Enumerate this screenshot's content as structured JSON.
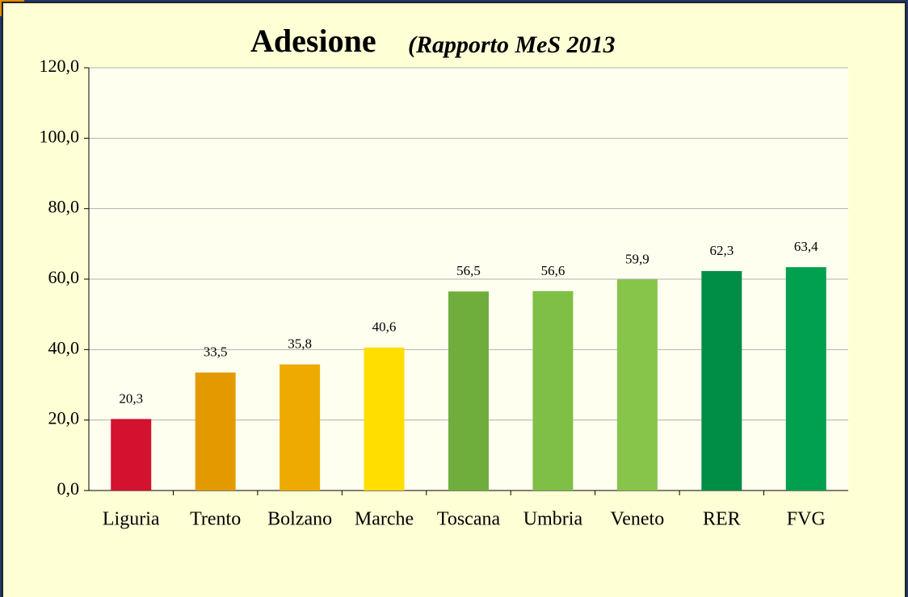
{
  "chart_data": {
    "type": "bar",
    "title": "Adesione",
    "subtitle": "(Rapporto MeS 2013",
    "categories": [
      "Liguria",
      "Trento",
      "Bolzano",
      "Marche",
      "Toscana",
      "Umbria",
      "Veneto",
      "RER",
      "FVG"
    ],
    "values": [
      20.3,
      33.5,
      35.8,
      40.6,
      56.5,
      56.6,
      59.9,
      62.3,
      63.4
    ],
    "value_labels": [
      "20,3",
      "33,5",
      "35,8",
      "40,6",
      "56,5",
      "56,6",
      "59,9",
      "62,3",
      "63,4"
    ],
    "colors": [
      "#d2122e",
      "#e39a00",
      "#eeaa00",
      "#ffde00",
      "#6fae3c",
      "#80bf45",
      "#86c44a",
      "#008d45",
      "#00a04e"
    ],
    "ylim": [
      0,
      120
    ],
    "yticks": [
      {
        "value": 0,
        "label": "0,0"
      },
      {
        "value": 20,
        "label": "20,0"
      },
      {
        "value": 40,
        "label": "40,0"
      },
      {
        "value": 60,
        "label": "60,0"
      },
      {
        "value": 80,
        "label": "80,0"
      },
      {
        "value": 100,
        "label": "100,0"
      },
      {
        "value": 120,
        "label": "120,0"
      }
    ],
    "grid": true
  }
}
